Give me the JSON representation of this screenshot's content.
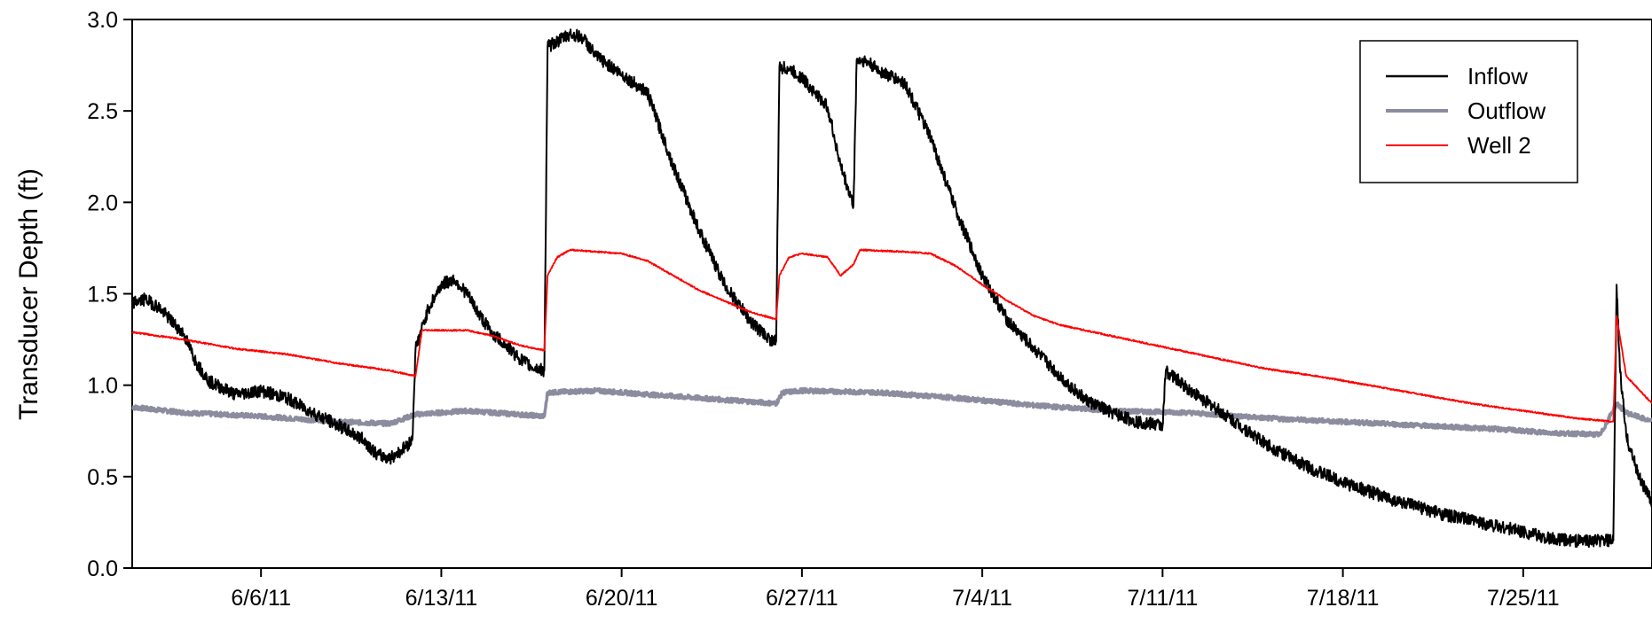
{
  "chart_data": {
    "type": "line",
    "title": "",
    "xlabel": "",
    "ylabel": "Transducer Depth (ft)",
    "ylim": [
      0.0,
      3.0
    ],
    "xlim": [
      "2011-06-01",
      "2011-07-30"
    ],
    "yticks": [
      0.0,
      0.5,
      1.0,
      1.5,
      2.0,
      2.5,
      3.0
    ],
    "ytick_labels": [
      "0.0",
      "0.5",
      "1.0",
      "1.5",
      "2.0",
      "2.5",
      "3.0"
    ],
    "xticks": [
      "2011-06-06",
      "2011-06-13",
      "2011-06-20",
      "2011-06-27",
      "2011-07-04",
      "2011-07-11",
      "2011-07-18",
      "2011-07-25"
    ],
    "xtick_labels": [
      "6/6/11",
      "6/13/11",
      "6/20/11",
      "6/27/11",
      "7/4/11",
      "7/11/11",
      "7/18/11",
      "7/25/11"
    ],
    "grid": false,
    "legend_position": "top-right",
    "series": [
      {
        "name": "Inflow",
        "color": "#000000",
        "points": [
          [
            "2011-06-01",
            1.45
          ],
          [
            "2011-06-01T12",
            1.47
          ],
          [
            "2011-06-02",
            1.43
          ],
          [
            "2011-06-03",
            1.28
          ],
          [
            "2011-06-03T12",
            1.12
          ],
          [
            "2011-06-04",
            1.02
          ],
          [
            "2011-06-05",
            0.95
          ],
          [
            "2011-06-06",
            0.97
          ],
          [
            "2011-06-07",
            0.93
          ],
          [
            "2011-06-08",
            0.85
          ],
          [
            "2011-06-09",
            0.78
          ],
          [
            "2011-06-10",
            0.7
          ],
          [
            "2011-06-10T12",
            0.62
          ],
          [
            "2011-06-11",
            0.6
          ],
          [
            "2011-06-11T12",
            0.65
          ],
          [
            "2011-06-11T21",
            0.7
          ],
          [
            "2011-06-12",
            1.2
          ],
          [
            "2011-06-12T12",
            1.42
          ],
          [
            "2011-06-13",
            1.55
          ],
          [
            "2011-06-13T12",
            1.58
          ],
          [
            "2011-06-14",
            1.5
          ],
          [
            "2011-06-14T12",
            1.38
          ],
          [
            "2011-06-15",
            1.28
          ],
          [
            "2011-06-15T12",
            1.22
          ],
          [
            "2011-06-16",
            1.15
          ],
          [
            "2011-06-16T12",
            1.1
          ],
          [
            "2011-06-17",
            1.08
          ],
          [
            "2011-06-17T03",
            2.85
          ],
          [
            "2011-06-17T12",
            2.88
          ],
          [
            "2011-06-18",
            2.92
          ],
          [
            "2011-06-18T12",
            2.9
          ],
          [
            "2011-06-19",
            2.8
          ],
          [
            "2011-06-20",
            2.7
          ],
          [
            "2011-06-21",
            2.6
          ],
          [
            "2011-06-22",
            2.2
          ],
          [
            "2011-06-23",
            1.85
          ],
          [
            "2011-06-24",
            1.55
          ],
          [
            "2011-06-25",
            1.35
          ],
          [
            "2011-06-25T18",
            1.25
          ],
          [
            "2011-06-26",
            1.24
          ],
          [
            "2011-06-26T03",
            2.74
          ],
          [
            "2011-06-26T12",
            2.73
          ],
          [
            "2011-06-27",
            2.68
          ],
          [
            "2011-06-28",
            2.52
          ],
          [
            "2011-06-28T12",
            2.2
          ],
          [
            "2011-06-29",
            1.98
          ],
          [
            "2011-06-29T03",
            2.78
          ],
          [
            "2011-06-29T12",
            2.77
          ],
          [
            "2011-06-30",
            2.72
          ],
          [
            "2011-07-01",
            2.65
          ],
          [
            "2011-07-02",
            2.35
          ],
          [
            "2011-07-03",
            1.95
          ],
          [
            "2011-07-04",
            1.6
          ],
          [
            "2011-07-05",
            1.35
          ],
          [
            "2011-07-06",
            1.2
          ],
          [
            "2011-07-07",
            1.05
          ],
          [
            "2011-07-08",
            0.92
          ],
          [
            "2011-07-09",
            0.85
          ],
          [
            "2011-07-10",
            0.8
          ],
          [
            "2011-07-11",
            0.78
          ],
          [
            "2011-07-11T03",
            1.08
          ],
          [
            "2011-07-12",
            0.98
          ],
          [
            "2011-07-13",
            0.88
          ],
          [
            "2011-07-14",
            0.78
          ],
          [
            "2011-07-15",
            0.68
          ],
          [
            "2011-07-16",
            0.6
          ],
          [
            "2011-07-17",
            0.53
          ],
          [
            "2011-07-18",
            0.47
          ],
          [
            "2011-07-19",
            0.42
          ],
          [
            "2011-07-20",
            0.37
          ],
          [
            "2011-07-21",
            0.33
          ],
          [
            "2011-07-22",
            0.29
          ],
          [
            "2011-07-23",
            0.26
          ],
          [
            "2011-07-24",
            0.23
          ],
          [
            "2011-07-25",
            0.2
          ],
          [
            "2011-07-25T12",
            0.18
          ],
          [
            "2011-07-26",
            0.16
          ],
          [
            "2011-07-27",
            0.15
          ],
          [
            "2011-07-28",
            0.15
          ],
          [
            "2011-07-28T12",
            0.15
          ],
          [
            "2011-07-28T15",
            1.55
          ],
          [
            "2011-07-28T18",
            1.1
          ],
          [
            "2011-07-29",
            0.72
          ],
          [
            "2011-07-29T12",
            0.5
          ],
          [
            "2011-07-30",
            0.36
          ]
        ]
      },
      {
        "name": "Outflow",
        "color": "#8c8c9f",
        "points": [
          [
            "2011-06-01",
            0.88
          ],
          [
            "2011-06-03",
            0.85
          ],
          [
            "2011-06-06",
            0.83
          ],
          [
            "2011-06-09",
            0.8
          ],
          [
            "2011-06-11",
            0.79
          ],
          [
            "2011-06-12",
            0.84
          ],
          [
            "2011-06-14",
            0.86
          ],
          [
            "2011-06-16",
            0.84
          ],
          [
            "2011-06-17",
            0.83
          ],
          [
            "2011-06-17T03",
            0.96
          ],
          [
            "2011-06-19",
            0.97
          ],
          [
            "2011-06-22",
            0.94
          ],
          [
            "2011-06-25",
            0.91
          ],
          [
            "2011-06-26",
            0.9
          ],
          [
            "2011-06-26T06",
            0.96
          ],
          [
            "2011-06-27",
            0.97
          ],
          [
            "2011-06-30",
            0.96
          ],
          [
            "2011-07-03",
            0.93
          ],
          [
            "2011-07-06",
            0.89
          ],
          [
            "2011-07-09",
            0.86
          ],
          [
            "2011-07-12",
            0.85
          ],
          [
            "2011-07-15",
            0.82
          ],
          [
            "2011-07-18",
            0.8
          ],
          [
            "2011-07-21",
            0.78
          ],
          [
            "2011-07-24",
            0.76
          ],
          [
            "2011-07-26",
            0.74
          ],
          [
            "2011-07-28",
            0.73
          ],
          [
            "2011-07-28T15",
            0.9
          ],
          [
            "2011-07-29",
            0.85
          ],
          [
            "2011-07-30",
            0.8
          ]
        ]
      },
      {
        "name": "Well 2",
        "color": "#ff0000",
        "points": [
          [
            "2011-06-01",
            1.29
          ],
          [
            "2011-06-03",
            1.25
          ],
          [
            "2011-06-05",
            1.2
          ],
          [
            "2011-06-07",
            1.17
          ],
          [
            "2011-06-09",
            1.12
          ],
          [
            "2011-06-11",
            1.08
          ],
          [
            "2011-06-12",
            1.05
          ],
          [
            "2011-06-12T06",
            1.3
          ],
          [
            "2011-06-13",
            1.3
          ],
          [
            "2011-06-14",
            1.3
          ],
          [
            "2011-06-15",
            1.27
          ],
          [
            "2011-06-16",
            1.22
          ],
          [
            "2011-06-17",
            1.19
          ],
          [
            "2011-06-17T03",
            1.6
          ],
          [
            "2011-06-17T12",
            1.7
          ],
          [
            "2011-06-18",
            1.74
          ],
          [
            "2011-06-19",
            1.73
          ],
          [
            "2011-06-20",
            1.72
          ],
          [
            "2011-06-21",
            1.68
          ],
          [
            "2011-06-22",
            1.6
          ],
          [
            "2011-06-23",
            1.52
          ],
          [
            "2011-06-24",
            1.46
          ],
          [
            "2011-06-25",
            1.4
          ],
          [
            "2011-06-26",
            1.36
          ],
          [
            "2011-06-26T03",
            1.6
          ],
          [
            "2011-06-26T12",
            1.7
          ],
          [
            "2011-06-27",
            1.72
          ],
          [
            "2011-06-28",
            1.7
          ],
          [
            "2011-06-28T12",
            1.6
          ],
          [
            "2011-06-29",
            1.66
          ],
          [
            "2011-06-29T06",
            1.74
          ],
          [
            "2011-07-01",
            1.73
          ],
          [
            "2011-07-02",
            1.72
          ],
          [
            "2011-07-03",
            1.65
          ],
          [
            "2011-07-04",
            1.55
          ],
          [
            "2011-07-05",
            1.46
          ],
          [
            "2011-07-06",
            1.38
          ],
          [
            "2011-07-07",
            1.33
          ],
          [
            "2011-07-09",
            1.27
          ],
          [
            "2011-07-11",
            1.21
          ],
          [
            "2011-07-13",
            1.15
          ],
          [
            "2011-07-15",
            1.09
          ],
          [
            "2011-07-17",
            1.05
          ],
          [
            "2011-07-19",
            1.0
          ],
          [
            "2011-07-21",
            0.95
          ],
          [
            "2011-07-23",
            0.9
          ],
          [
            "2011-07-25",
            0.86
          ],
          [
            "2011-07-27",
            0.82
          ],
          [
            "2011-07-28T12",
            0.8
          ],
          [
            "2011-07-28T15",
            1.38
          ],
          [
            "2011-07-29",
            1.05
          ],
          [
            "2011-07-30",
            0.9
          ]
        ]
      }
    ]
  }
}
